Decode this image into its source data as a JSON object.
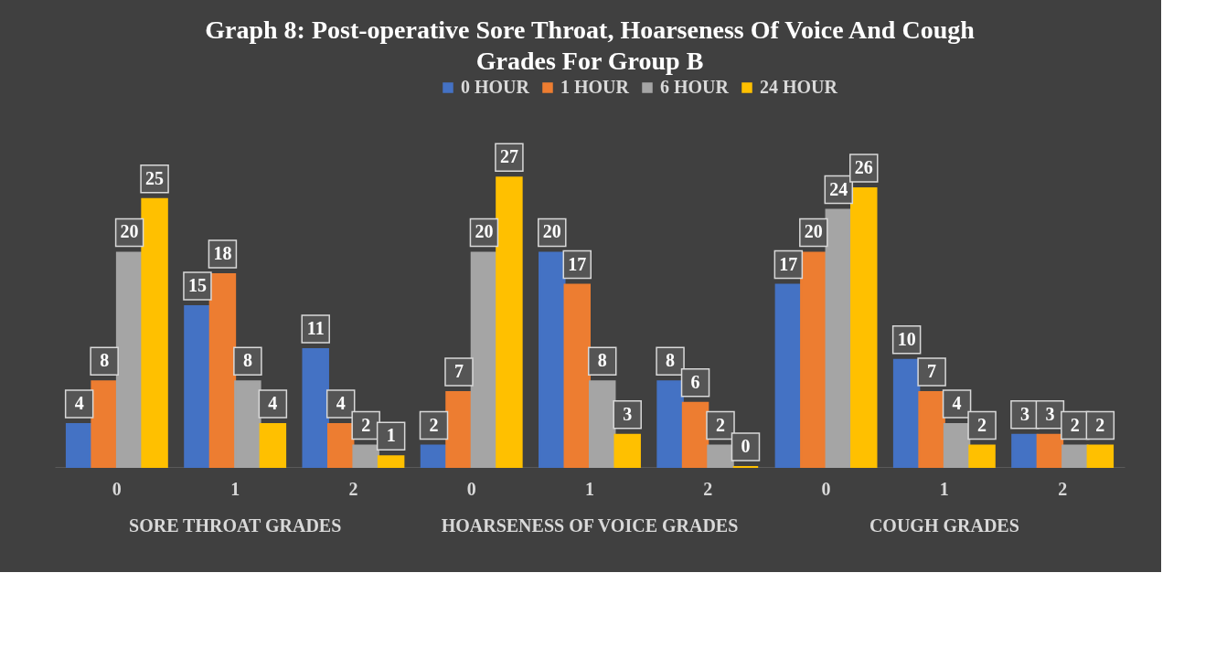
{
  "chart_data": {
    "type": "bar",
    "title": "Graph 8: Post-operative Sore Throat, Hoarseness Of Voice And Cough Grades For Group B",
    "categories": [
      "0",
      "1",
      "2",
      "0",
      "1",
      "2",
      "0",
      "1",
      "2"
    ],
    "series": [
      {
        "name": "0 HOUR",
        "color": "#4472c4",
        "values": [
          4,
          15,
          11,
          2,
          20,
          8,
          17,
          10,
          3
        ]
      },
      {
        "name": "1 HOUR",
        "color": "#ed7d31",
        "values": [
          8,
          18,
          4,
          7,
          17,
          6,
          20,
          7,
          3
        ]
      },
      {
        "name": "6 HOUR",
        "color": "#a5a5a5",
        "values": [
          20,
          8,
          2,
          20,
          8,
          2,
          24,
          4,
          2
        ]
      },
      {
        "name": "24 HOUR",
        "color": "#ffc000",
        "values": [
          25,
          4,
          1,
          27,
          3,
          0,
          26,
          2,
          2
        ]
      }
    ],
    "annotations": [
      "SORE THROAT GRADES",
      "HOARSENESS OF VOICE GRADES",
      "COUGH GRADES"
    ],
    "data_labels": true,
    "legend": "top",
    "grid": false
  }
}
